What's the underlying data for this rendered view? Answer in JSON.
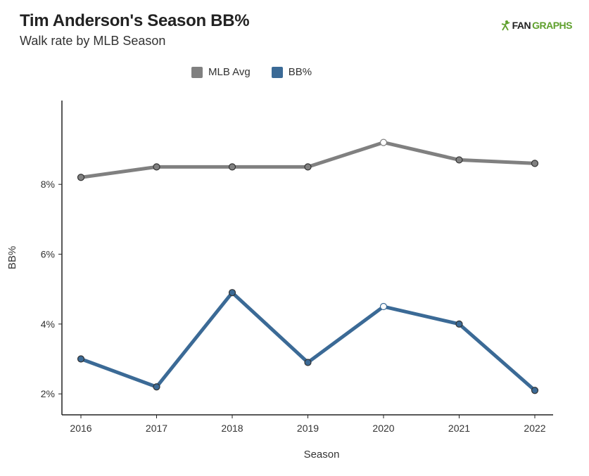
{
  "header": {
    "title": "Tim Anderson's Season BB%",
    "subtitle": "Walk rate by MLB Season",
    "logo_fan": "FAN",
    "logo_graphs": "GRAPHS"
  },
  "chart_data": {
    "type": "line",
    "title": "Tim Anderson's Season BB%",
    "subtitle": "Walk rate by MLB Season",
    "xlabel": "Season",
    "ylabel": "BB%",
    "x": [
      "2016",
      "2017",
      "2018",
      "2019",
      "2020",
      "2021",
      "2022"
    ],
    "ylim": [
      1.4,
      10.4
    ],
    "yticks": [
      2,
      4,
      6,
      8
    ],
    "ytick_labels": [
      "2%",
      "4%",
      "6%",
      "8%"
    ],
    "legend_position": "top-center",
    "grid": false,
    "series": [
      {
        "name": "MLB Avg",
        "color": "#808080",
        "values": [
          8.2,
          8.5,
          8.5,
          8.5,
          9.2,
          8.7,
          8.6
        ]
      },
      {
        "name": "BB%",
        "color": "#3b6a96",
        "values": [
          3.0,
          2.2,
          4.9,
          2.9,
          4.5,
          4.0,
          2.1
        ]
      }
    ],
    "highlight_index": 4
  }
}
